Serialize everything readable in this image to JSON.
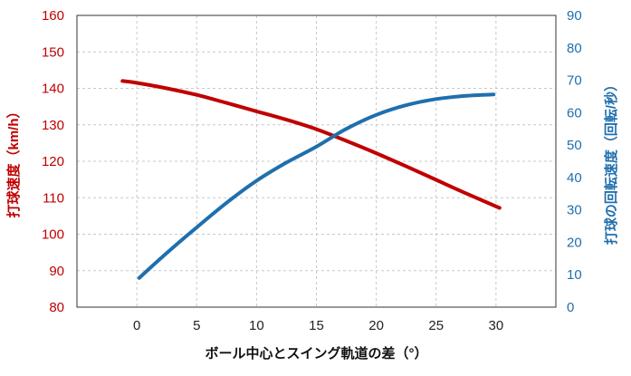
{
  "chart_data": {
    "type": "line",
    "title": "",
    "xlabel": "ボール中心とスイング軌道の差（°）",
    "ylabel_left": "打球速度（km/h）",
    "ylabel_right": "打球の回転速度（回転/秒）",
    "xlim": [
      -5,
      35
    ],
    "ylim_left": [
      80,
      160
    ],
    "ylim_right": [
      0,
      90
    ],
    "x_ticks": [
      "0",
      "5",
      "10",
      "15",
      "20",
      "25",
      "30"
    ],
    "y_ticks_left": [
      "80",
      "90",
      "100",
      "110",
      "120",
      "130",
      "140",
      "150",
      "160"
    ],
    "y_ticks_right": [
      "0",
      "10",
      "20",
      "30",
      "40",
      "50",
      "60",
      "70",
      "80",
      "90"
    ],
    "grid": true,
    "colors": {
      "left_series": "#c00000",
      "right_series": "#1f6fad",
      "grid": "#c8c8c8"
    },
    "series": [
      {
        "axis": "left",
        "x": [
          -1.2,
          0,
          2.5,
          5,
          7.5,
          10,
          12.5,
          15,
          17.5,
          20,
          22.5,
          25,
          27.5,
          30.3
        ],
        "values": [
          142,
          141.5,
          140,
          138.2,
          136,
          133.7,
          131.4,
          128.8,
          125.6,
          122.2,
          118.6,
          114.9,
          111.2,
          107.2
        ]
      },
      {
        "axis": "right",
        "x": [
          0.2,
          2.5,
          5,
          7.5,
          10,
          12.5,
          15,
          17.5,
          20,
          22.5,
          25,
          27.5,
          29.8
        ],
        "values": [
          9,
          16.7,
          24.6,
          32.2,
          39,
          44.6,
          49.5,
          55,
          59.3,
          62.3,
          64.2,
          65.2,
          65.6
        ]
      }
    ]
  }
}
